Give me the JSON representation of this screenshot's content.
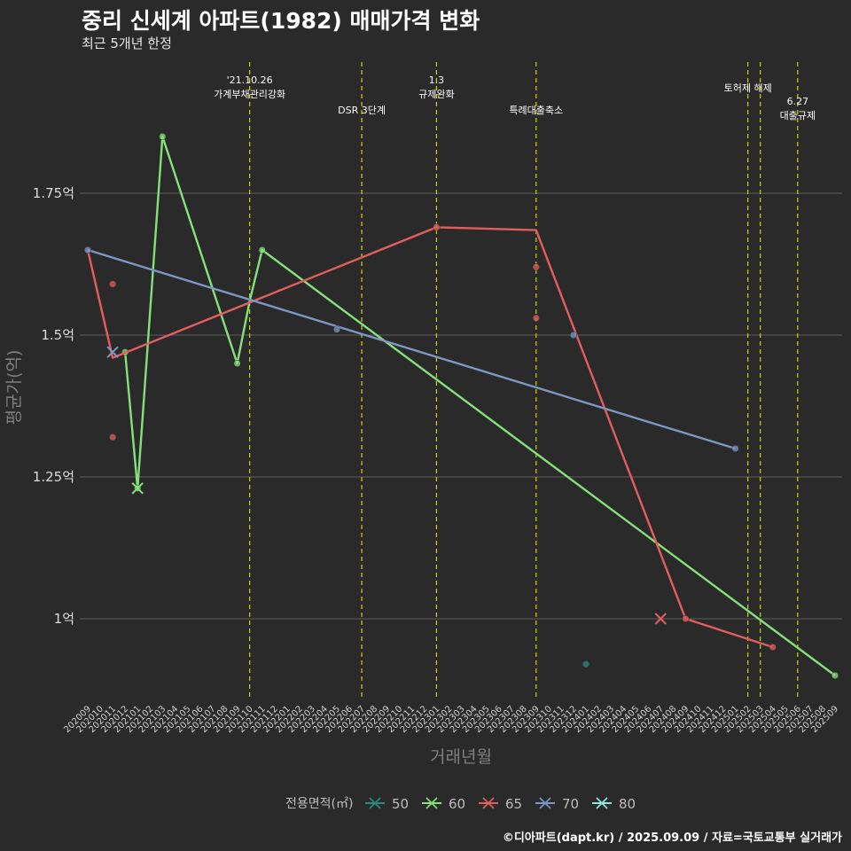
{
  "header": {
    "title": "중리 신세계 아파트(1982) 매매가격 변화",
    "subtitle": "최근 5개년 한정"
  },
  "caption": "©디아파트(dapt.kr) / 2025.09.09 / 자료=국토교통부 실거래가",
  "chart_data": {
    "type": "line",
    "xlabel": "거래년월",
    "ylabel": "평균가(억)",
    "ylim": [
      0.86,
      1.9
    ],
    "y_ticks": [
      {
        "value": 1.0,
        "label": "1억"
      },
      {
        "value": 1.25,
        "label": "1.25억"
      },
      {
        "value": 1.5,
        "label": "1.5억"
      },
      {
        "value": 1.75,
        "label": "1.75억"
      }
    ],
    "months": [
      "202009",
      "202010",
      "202011",
      "202012",
      "202101",
      "202102",
      "202103",
      "202104",
      "202105",
      "202106",
      "202107",
      "202108",
      "202109",
      "202110",
      "202111",
      "202112",
      "202201",
      "202202",
      "202203",
      "202204",
      "202205",
      "202206",
      "202207",
      "202208",
      "202209",
      "202210",
      "202211",
      "202212",
      "202301",
      "202302",
      "202303",
      "202304",
      "202305",
      "202306",
      "202307",
      "202308",
      "202309",
      "202310",
      "202311",
      "202312",
      "202401",
      "202402",
      "202403",
      "202404",
      "202405",
      "202406",
      "202407",
      "202408",
      "202409",
      "202410",
      "202411",
      "202412",
      "202501",
      "202502",
      "202503",
      "202504",
      "202505",
      "202506",
      "202507",
      "202508",
      "202509"
    ],
    "vlines": [
      {
        "month": "202110",
        "label": "'21.10.26\n가계부채관리강화",
        "row": 0
      },
      {
        "month": "202207",
        "label": "DSR 3단계",
        "row": 1
      },
      {
        "month": "202301",
        "label": "1.3\n규제완화",
        "row": 0
      },
      {
        "month": "202309",
        "label": "특례대출축소",
        "row": 1
      },
      {
        "month": "202502",
        "label": "토허제 해제",
        "row": 0
      },
      {
        "month": "202503",
        "label": "",
        "row": 0
      },
      {
        "month": "202506",
        "label": "6.27\n대출규제",
        "row": 1
      }
    ],
    "legend_title": "전용면적(㎡)",
    "series": [
      {
        "name": "50",
        "color": "#2a8a84",
        "line": [],
        "points": [
          {
            "month": "202401",
            "value": 0.92
          }
        ],
        "crosses": []
      },
      {
        "name": "60",
        "color": "#86e07a",
        "line": [
          {
            "month": "202012",
            "value": 1.47
          },
          {
            "month": "202101",
            "value": 1.23
          },
          {
            "month": "202103",
            "value": 1.85
          },
          {
            "month": "202109",
            "value": 1.45
          },
          {
            "month": "202110",
            "value": 1.56
          },
          {
            "month": "202111",
            "value": 1.65
          },
          {
            "month": "202509",
            "value": 0.9
          }
        ],
        "points": [
          {
            "month": "202012",
            "value": 1.47
          },
          {
            "month": "202101",
            "value": 1.23
          },
          {
            "month": "202103",
            "value": 1.85
          },
          {
            "month": "202109",
            "value": 1.45
          },
          {
            "month": "202111",
            "value": 1.65
          },
          {
            "month": "202509",
            "value": 0.9
          }
        ],
        "crosses": [
          {
            "month": "202101",
            "value": 1.23
          }
        ]
      },
      {
        "name": "65",
        "color": "#e25e5e",
        "line": [
          {
            "month": "202009",
            "value": 1.65
          },
          {
            "month": "202011",
            "value": 1.46
          },
          {
            "month": "202301",
            "value": 1.69
          },
          {
            "month": "202309",
            "value": 1.685
          },
          {
            "month": "202409",
            "value": 1.0
          },
          {
            "month": "202504",
            "value": 0.95
          }
        ],
        "points": [
          {
            "month": "202011",
            "value": 1.59
          },
          {
            "month": "202011",
            "value": 1.32
          },
          {
            "month": "202301",
            "value": 1.69
          },
          {
            "month": "202309",
            "value": 1.62
          },
          {
            "month": "202309",
            "value": 1.53
          },
          {
            "month": "202409",
            "value": 1.0
          },
          {
            "month": "202504",
            "value": 0.95
          }
        ],
        "crosses": [
          {
            "month": "202407",
            "value": 1.0
          }
        ]
      },
      {
        "name": "70",
        "color": "#7c97c4",
        "line": [
          {
            "month": "202009",
            "value": 1.65
          },
          {
            "month": "202501",
            "value": 1.3
          }
        ],
        "points": [
          {
            "month": "202009",
            "value": 1.65
          },
          {
            "month": "202205",
            "value": 1.51
          },
          {
            "month": "202312",
            "value": 1.5
          },
          {
            "month": "202501",
            "value": 1.3
          }
        ],
        "crosses": [
          {
            "month": "202011",
            "value": 1.47
          }
        ]
      },
      {
        "name": "80",
        "color": "#8fe8e0",
        "line": [],
        "points": [],
        "crosses": []
      }
    ]
  }
}
